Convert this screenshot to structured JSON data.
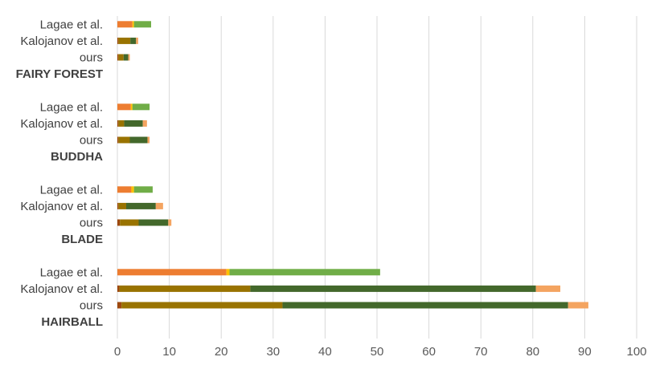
{
  "chart_data": {
    "type": "bar",
    "orientation": "horizontal",
    "stacked": true,
    "title": "",
    "xlabel": "",
    "ylabel": "",
    "xlim": [
      0,
      100
    ],
    "x_ticks": [
      "0",
      "10",
      "20",
      "30",
      "40",
      "50",
      "60",
      "70",
      "80",
      "90",
      "100"
    ],
    "grid": "vertical",
    "legend": "none",
    "groups": [
      {
        "label": "FAIRY FOREST",
        "rows": [
          {
            "label": "Lagae et al.",
            "segments": [
              {
                "value": 2.9,
                "color": "#ed7d31"
              },
              {
                "value": 0.3,
                "color": "#ffc000"
              },
              {
                "value": 3.3,
                "color": "#70ad47"
              }
            ]
          },
          {
            "label": "Kalojanov et al.",
            "segments": [
              {
                "value": 0.2,
                "color": "#9e480e"
              },
              {
                "value": 2.3,
                "color": "#997300"
              },
              {
                "value": 1.1,
                "color": "#43682b"
              },
              {
                "value": 0.4,
                "color": "#f4a460"
              }
            ]
          },
          {
            "label": "ours",
            "segments": [
              {
                "value": 0.2,
                "color": "#9e480e"
              },
              {
                "value": 1.0,
                "color": "#997300"
              },
              {
                "value": 0.9,
                "color": "#43682b"
              },
              {
                "value": 0.3,
                "color": "#f4a460"
              }
            ]
          }
        ]
      },
      {
        "label": "BUDDHA",
        "rows": [
          {
            "label": "Lagae et al.",
            "segments": [
              {
                "value": 2.6,
                "color": "#ed7d31"
              },
              {
                "value": 0.3,
                "color": "#ffc000"
              },
              {
                "value": 3.3,
                "color": "#70ad47"
              }
            ]
          },
          {
            "label": "Kalojanov et al.",
            "segments": [
              {
                "value": 0.2,
                "color": "#9e480e"
              },
              {
                "value": 1.1,
                "color": "#997300"
              },
              {
                "value": 3.6,
                "color": "#43682b"
              },
              {
                "value": 0.8,
                "color": "#f4a460"
              }
            ]
          },
          {
            "label": "ours",
            "segments": [
              {
                "value": 0.2,
                "color": "#9e480e"
              },
              {
                "value": 2.2,
                "color": "#997300"
              },
              {
                "value": 3.4,
                "color": "#43682b"
              },
              {
                "value": 0.4,
                "color": "#f4a460"
              }
            ]
          }
        ]
      },
      {
        "label": "BLADE",
        "rows": [
          {
            "label": "Lagae et al.",
            "segments": [
              {
                "value": 2.7,
                "color": "#ed7d31"
              },
              {
                "value": 0.5,
                "color": "#ffc000"
              },
              {
                "value": 3.6,
                "color": "#70ad47"
              }
            ]
          },
          {
            "label": "Kalojanov et al.",
            "segments": [
              {
                "value": 0.2,
                "color": "#9e480e"
              },
              {
                "value": 1.5,
                "color": "#997300"
              },
              {
                "value": 5.7,
                "color": "#43682b"
              },
              {
                "value": 1.4,
                "color": "#f4a460"
              }
            ]
          },
          {
            "label": "ours",
            "segments": [
              {
                "value": 0.5,
                "color": "#9e480e"
              },
              {
                "value": 3.6,
                "color": "#997300"
              },
              {
                "value": 5.7,
                "color": "#43682b"
              },
              {
                "value": 0.6,
                "color": "#f4a460"
              }
            ]
          }
        ]
      },
      {
        "label": "HAIRBALL",
        "rows": [
          {
            "label": "Lagae et al.",
            "segments": [
              {
                "value": 21.0,
                "color": "#ed7d31"
              },
              {
                "value": 0.6,
                "color": "#ffc000"
              },
              {
                "value": 29.0,
                "color": "#70ad47"
              }
            ]
          },
          {
            "label": "Kalojanov et al.",
            "segments": [
              {
                "value": 0.4,
                "color": "#9e480e"
              },
              {
                "value": 25.2,
                "color": "#997300"
              },
              {
                "value": 55.0,
                "color": "#43682b"
              },
              {
                "value": 4.7,
                "color": "#f4a460"
              }
            ]
          },
          {
            "label": "ours",
            "segments": [
              {
                "value": 0.8,
                "color": "#9e480e"
              },
              {
                "value": 31.0,
                "color": "#997300"
              },
              {
                "value": 55.0,
                "color": "#43682b"
              },
              {
                "value": 3.9,
                "color": "#f4a460"
              }
            ]
          }
        ]
      }
    ]
  }
}
